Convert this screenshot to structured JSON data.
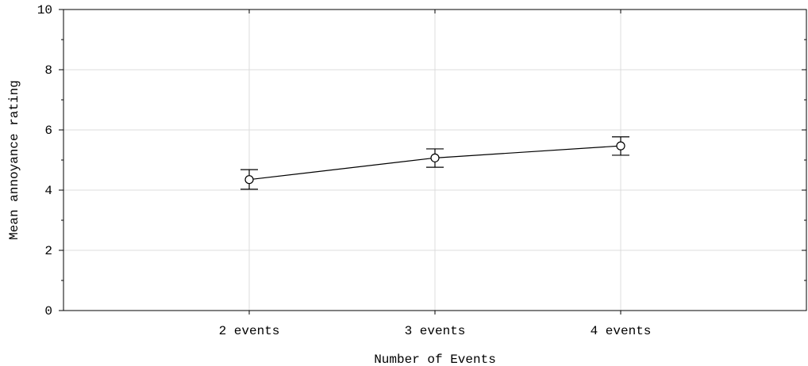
{
  "chart_data": {
    "type": "line",
    "title": "",
    "xlabel": "Number of Events",
    "ylabel": "Mean annoyance rating",
    "categories": [
      "2 events",
      "3 events",
      "4 events"
    ],
    "series": [
      {
        "values": [
          4.35,
          5.07,
          5.47
        ],
        "error_low": [
          4.03,
          4.76,
          5.16
        ],
        "error_high": [
          4.68,
          5.37,
          5.77
        ],
        "marker": "open-circle"
      }
    ],
    "ylim": [
      0,
      10
    ],
    "yticks": [
      0,
      2,
      4,
      6,
      8,
      10
    ],
    "grid": true,
    "legend": "none"
  }
}
